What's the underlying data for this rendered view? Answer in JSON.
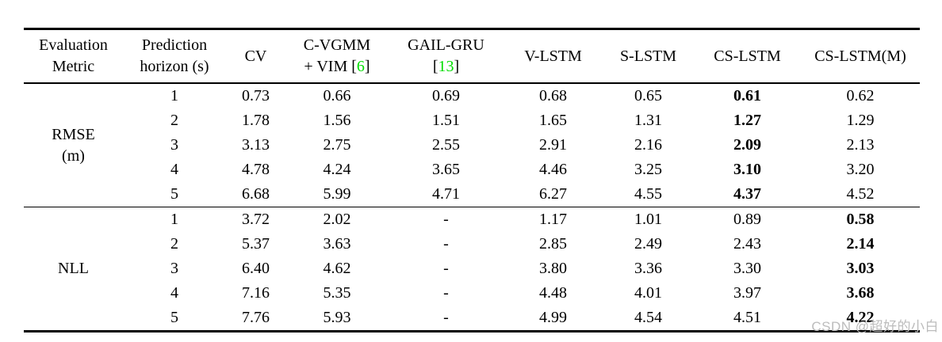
{
  "table": {
    "header": [
      {
        "name": "evaluation-metric",
        "lines": [
          "Evaluation",
          "Metric"
        ]
      },
      {
        "name": "prediction-horizon",
        "lines": [
          "Prediction",
          "horizon (s)"
        ]
      },
      {
        "name": "cv",
        "lines": [
          "CV"
        ]
      },
      {
        "name": "c-vgmm-vim",
        "lines": [
          "C-VGMM",
          "+ VIM [[6]]"
        ]
      },
      {
        "name": "gail-gru",
        "lines": [
          "GAIL-GRU",
          "[[13]]"
        ]
      },
      {
        "name": "v-lstm",
        "lines": [
          "V-LSTM"
        ]
      },
      {
        "name": "s-lstm",
        "lines": [
          "S-LSTM"
        ]
      },
      {
        "name": "cs-lstm",
        "lines": [
          "CS-LSTM"
        ]
      },
      {
        "name": "cs-lstm-m",
        "lines": [
          "CS-LSTM(M)"
        ]
      }
    ],
    "groups": [
      {
        "name": "rmse",
        "metric_lines": [
          "RMSE",
          "(m)"
        ],
        "bold_column": 5,
        "rows": [
          {
            "horizon": "1",
            "values": [
              "0.73",
              "0.66",
              "0.69",
              "0.68",
              "0.65",
              "0.61",
              "0.62"
            ]
          },
          {
            "horizon": "2",
            "values": [
              "1.78",
              "1.56",
              "1.51",
              "1.65",
              "1.31",
              "1.27",
              "1.29"
            ]
          },
          {
            "horizon": "3",
            "values": [
              "3.13",
              "2.75",
              "2.55",
              "2.91",
              "2.16",
              "2.09",
              "2.13"
            ]
          },
          {
            "horizon": "4",
            "values": [
              "4.78",
              "4.24",
              "3.65",
              "4.46",
              "3.25",
              "3.10",
              "3.20"
            ]
          },
          {
            "horizon": "5",
            "values": [
              "6.68",
              "5.99",
              "4.71",
              "6.27",
              "4.55",
              "4.37",
              "4.52"
            ]
          }
        ]
      },
      {
        "name": "nll",
        "metric_lines": [
          "NLL"
        ],
        "bold_column": 6,
        "rows": [
          {
            "horizon": "1",
            "values": [
              "3.72",
              "2.02",
              "-",
              "1.17",
              "1.01",
              "0.89",
              "0.58"
            ]
          },
          {
            "horizon": "2",
            "values": [
              "5.37",
              "3.63",
              "-",
              "2.85",
              "2.49",
              "2.43",
              "2.14"
            ]
          },
          {
            "horizon": "3",
            "values": [
              "6.40",
              "4.62",
              "-",
              "3.80",
              "3.36",
              "3.30",
              "3.03"
            ]
          },
          {
            "horizon": "4",
            "values": [
              "7.16",
              "5.35",
              "-",
              "4.48",
              "4.01",
              "3.97",
              "3.68"
            ]
          },
          {
            "horizon": "5",
            "values": [
              "7.76",
              "5.93",
              "-",
              "4.99",
              "4.54",
              "4.51",
              "4.22"
            ]
          }
        ]
      }
    ]
  },
  "watermark": {
    "text": "CSDN @超好的小白"
  },
  "colors": {
    "citation_green": "#00dd00",
    "watermark_gray": "#bcbcbc"
  }
}
